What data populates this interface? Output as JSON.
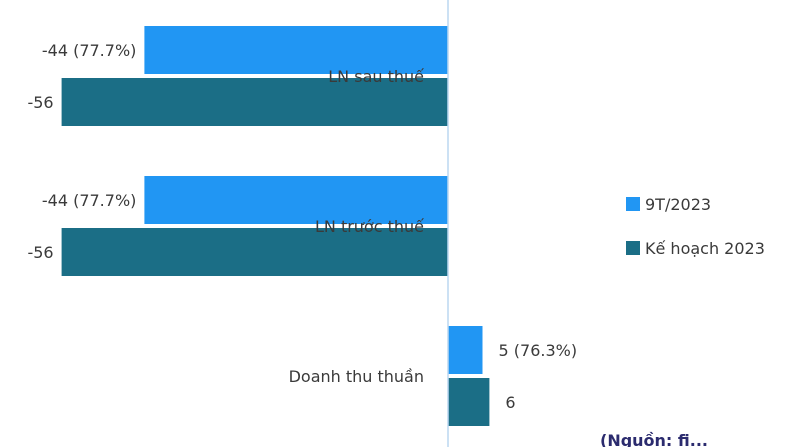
{
  "chart_data": {
    "type": "bar",
    "orientation": "horizontal",
    "categories": [
      "LN sau thuế",
      "LN trước thuế",
      "Doanh thu thuần"
    ],
    "series": [
      {
        "name": "9T/2023",
        "color": "#2196f3",
        "values": [
          -44,
          -44,
          5
        ],
        "labels": [
          "-44 (77.7%)",
          "-44 (77.7%)",
          "5 (76.3%)"
        ]
      },
      {
        "name": "Kế hoạch 2023",
        "color": "#1b6e86",
        "values": [
          -56,
          -56,
          6
        ],
        "labels": [
          "-56",
          "-56",
          "6"
        ]
      }
    ],
    "xlim": [
      -60,
      8
    ],
    "legend": "right",
    "grid": false,
    "footer_text": "(Nguồn: fi..."
  }
}
